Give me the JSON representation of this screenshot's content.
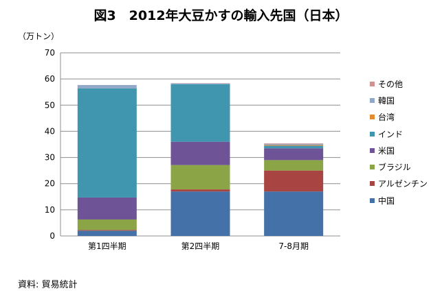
{
  "title": "図3　2012年大豆かすの輸入先国（日本）",
  "unit_label": "（万トン）",
  "source": "資料: 貿易統計",
  "chart_data": {
    "type": "bar",
    "stacked": true,
    "title": "図3　2012年大豆かすの輸入先国（日本）",
    "ylabel": "（万トン）",
    "xlabel": "",
    "ylim": [
      0,
      70
    ],
    "yticks": [
      0,
      10,
      20,
      30,
      40,
      50,
      60,
      70
    ],
    "grid": true,
    "legend_position": "right",
    "categories": [
      "第1四半期",
      "第2四半期",
      "7-8月期"
    ],
    "series": [
      {
        "name": "中国",
        "color": "#4472A8",
        "values": [
          2.0,
          17.0,
          17.0
        ]
      },
      {
        "name": "アルゼンチン",
        "color": "#A84442",
        "values": [
          0.3,
          0.8,
          8.0
        ]
      },
      {
        "name": "ブラジル",
        "color": "#8BA546",
        "values": [
          4.0,
          9.3,
          4.0
        ]
      },
      {
        "name": "米国",
        "color": "#6E5396",
        "values": [
          8.4,
          8.9,
          4.5
        ]
      },
      {
        "name": "インド",
        "color": "#3F96AE",
        "values": [
          41.7,
          22.0,
          1.0
        ]
      },
      {
        "name": "台湾",
        "color": "#E6892D",
        "values": [
          0.0,
          0.0,
          0.3
        ]
      },
      {
        "name": "韓国",
        "color": "#91A8C9",
        "values": [
          1.3,
          0.3,
          0.4
        ]
      },
      {
        "name": "その他",
        "color": "#CF928E",
        "values": [
          0.0,
          0.1,
          0.2
        ]
      }
    ]
  }
}
